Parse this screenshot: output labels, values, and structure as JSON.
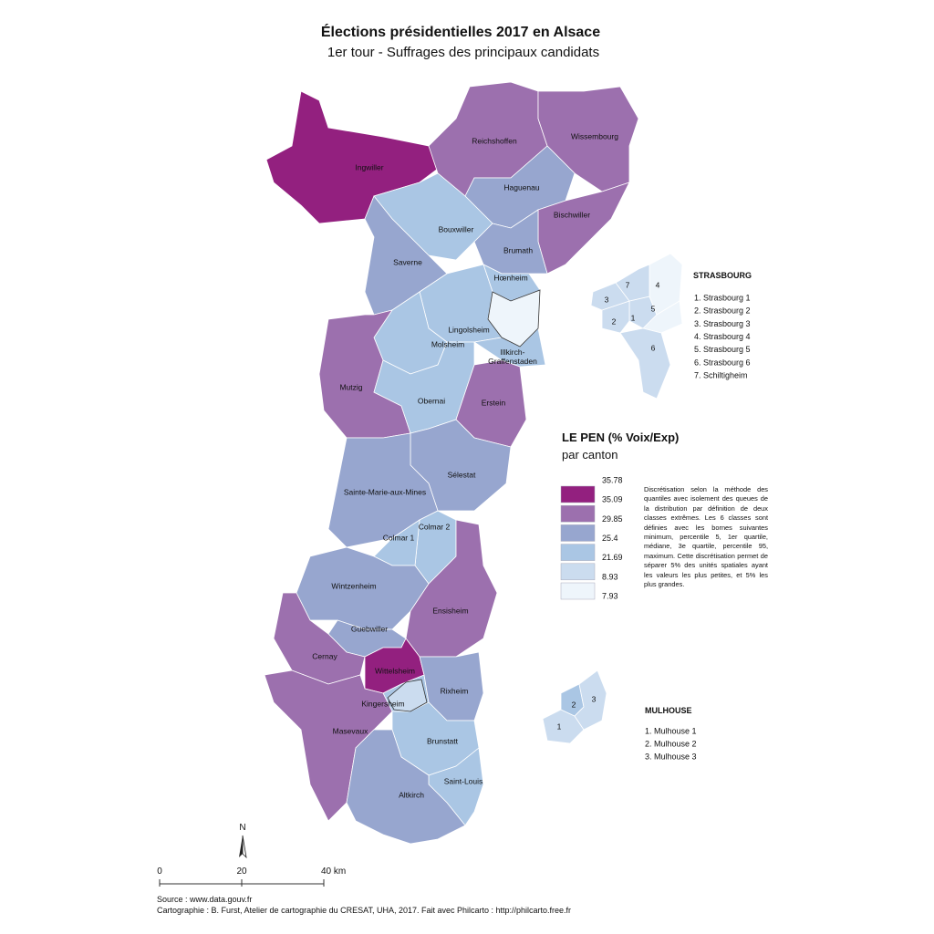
{
  "title": "Élections présidentielles 2017 en Alsace",
  "subtitle": "1er tour - Suffrages des principaux candidats",
  "cantons": [
    "Ingwiller",
    "Reichshoffen",
    "Wissembourg",
    "Haguenau",
    "Bischwiller",
    "Bouxwiller",
    "Brumath",
    "Saverne",
    "Hœnheim",
    "Lingolsheim",
    "Molsheim",
    "Mutzig",
    "Illkirch-\nGraffenstaden",
    "Obernai",
    "Erstein",
    "Sélestat",
    "Sainte-Marie-aux-Mines",
    "Colmar 2",
    "Colmar 1",
    "Wintzenheim",
    "Ensisheim",
    "Guebwiller",
    "Cernay",
    "Wittelsheim",
    "Kingersheim",
    "Rixheim",
    "Masevaux",
    "Brunstatt",
    "Saint-Louis",
    "Altkirch"
  ],
  "legend": {
    "title": "LE PEN (% Voix/Exp)",
    "subtitle": "par canton",
    "breaks": [
      35.78,
      35.09,
      29.85,
      25.4,
      21.69,
      8.93,
      7.93
    ],
    "colors": [
      "#93207f",
      "#9c70ae",
      "#97a6cf",
      "#aac6e4",
      "#cbdcef",
      "#eef5fb"
    ],
    "note": "Discrétisation selon la méthode des quantiles avec isolement des queues de la distribution par définition de deux classes extrêmes. Les 6 classes sont définies avec les bornes suivantes minimum, percentile 5, 1er quartile, médiane, 3e quartile, percentile 95, maximum. Cette discrétisation permet de séparer 5% des unités spatiales ayant les valeurs les plus petites, et 5% les plus grandes."
  },
  "strasbourg": {
    "title": "STRASBOURG",
    "items": [
      "1. Strasbourg 1",
      "2. Strasbourg 2",
      "3. Strasbourg 3",
      "4. Strasbourg 4",
      "5. Strasbourg 5",
      "6. Strasbourg 6",
      "7. Schiltigheim"
    ],
    "map_labels": [
      "1",
      "2",
      "3",
      "4",
      "5",
      "6",
      "7"
    ]
  },
  "mulhouse": {
    "title": "MULHOUSE",
    "items": [
      "1. Mulhouse 1",
      "2. Mulhouse 2",
      "3. Mulhouse 3"
    ],
    "map_labels": [
      "1",
      "2",
      "3"
    ]
  },
  "north": "N",
  "scale": [
    "0",
    "20",
    "40 km"
  ],
  "source": "Source : www.data.gouv.fr",
  "credits": "Cartographie : B. Furst, Atelier de cartographie du CRESAT, UHA, 2017. Fait avec Philcarto : http://philcarto.free.fr"
}
